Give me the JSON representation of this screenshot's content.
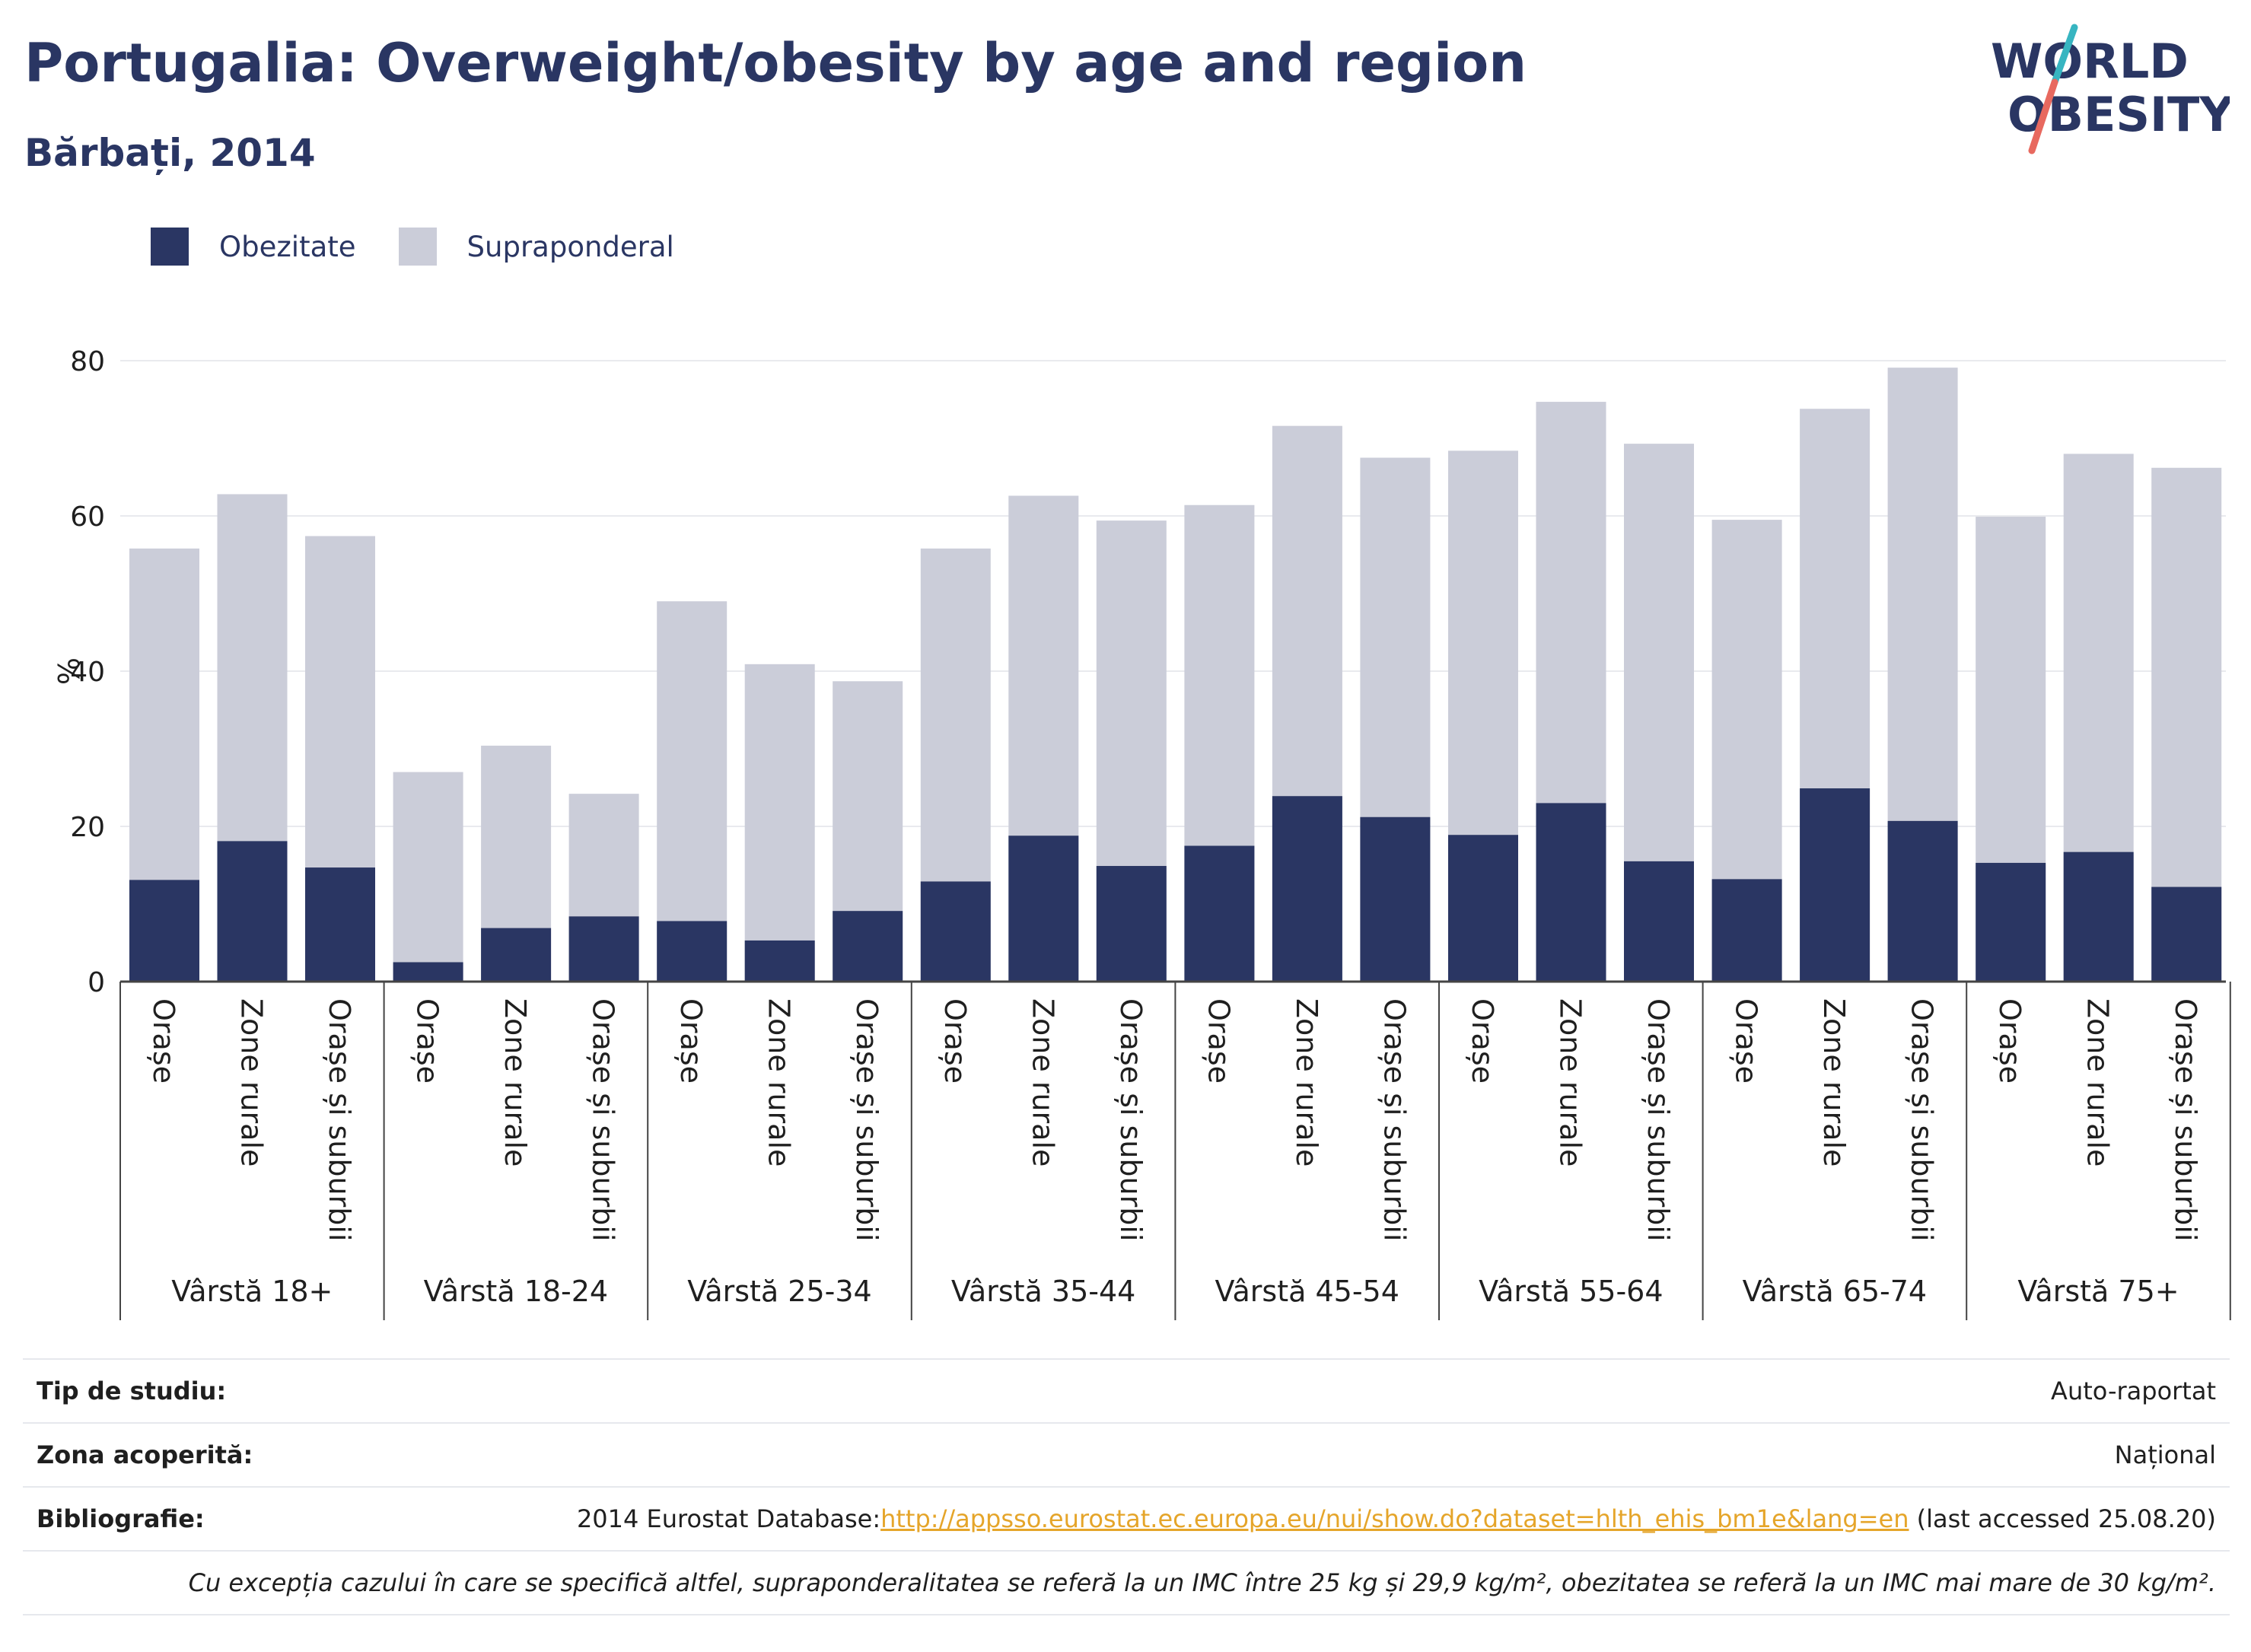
{
  "header": {
    "title": "Portugalia: Overweight/obesity by age and region",
    "subtitle": "Bărbați, 2014"
  },
  "logo": {
    "line1": "WORLD",
    "line2": "OBESITY"
  },
  "legend": [
    {
      "label": "Obezitate",
      "color": "#2a3663"
    },
    {
      "label": "Supraponderal",
      "color": "#cbcdd9"
    }
  ],
  "chart_data": {
    "type": "bar",
    "stacked": "overlay",
    "ylabel": "%",
    "ylim": [
      0,
      85
    ],
    "yticks": [
      0,
      20,
      40,
      60,
      80
    ],
    "grid": true,
    "legend_position": "top-left",
    "subcategories": [
      "Orașe",
      "Zone rurale",
      "Orașe și suburbii"
    ],
    "groups": [
      "Vârstă 18+",
      "Vârstă 18-24",
      "Vârstă 25-34",
      "Vârstă 35-44",
      "Vârstă 45-54",
      "Vârstă 55-64",
      "Vârstă 65-74",
      "Vârstă 75+"
    ],
    "series": [
      {
        "name": "Obezitate",
        "color": "#2a3663",
        "values": [
          [
            13.1,
            18.1,
            14.7
          ],
          [
            2.5,
            6.9,
            8.4
          ],
          [
            7.8,
            5.3,
            9.1
          ],
          [
            12.9,
            18.8,
            14.9
          ],
          [
            17.5,
            23.9,
            21.2
          ],
          [
            18.9,
            23.0,
            15.5
          ],
          [
            13.2,
            24.9,
            20.7
          ],
          [
            15.3,
            16.7,
            12.2
          ]
        ]
      },
      {
        "name": "Supraponderal",
        "color": "#cbcdd9",
        "values": [
          [
            55.8,
            62.8,
            57.4
          ],
          [
            27.0,
            30.4,
            24.2
          ],
          [
            49.0,
            40.9,
            38.7
          ],
          [
            55.8,
            62.6,
            59.4
          ],
          [
            61.4,
            71.6,
            67.5
          ],
          [
            68.4,
            74.7,
            69.3
          ],
          [
            59.5,
            73.8,
            79.1
          ],
          [
            59.9,
            68.0,
            66.2
          ]
        ]
      }
    ]
  },
  "info": {
    "study_type": {
      "label": "Tip de studiu:",
      "value": "Auto-raportat"
    },
    "coverage": {
      "label": "Zona acoperită:",
      "value": "Național"
    },
    "bibliography": {
      "label": "Bibliografie:",
      "prefix": "2014 Eurostat Database:",
      "link": "http://appsso.eurostat.ec.europa.eu/nui/show.do?dataset=hlth_ehis_bm1e&lang=en",
      "suffix": " (last accessed 25.08.20)"
    },
    "note": "Cu excepția cazului în care se specifică altfel, supraponderalitatea se referă la un IMC între 25 kg și 29,9 kg/m², obezitatea se referă la un IMC mai mare de 30 kg/m²."
  }
}
